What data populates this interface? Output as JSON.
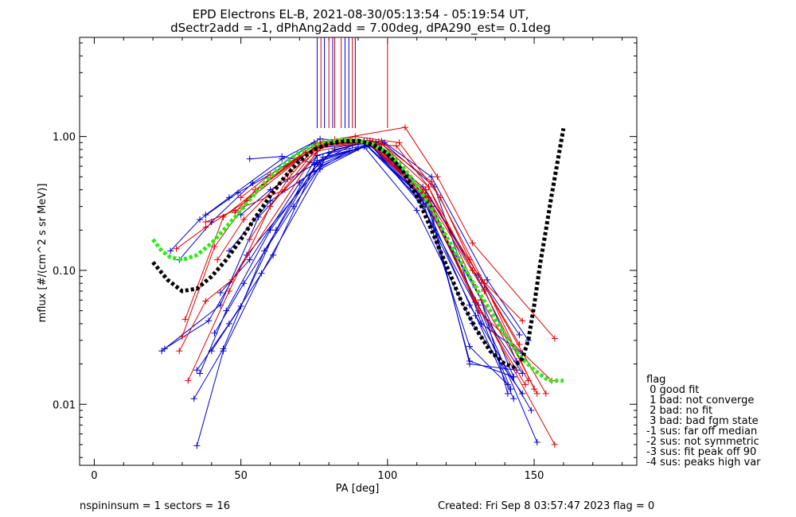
{
  "title": [
    "EPD Electrons EL-B, 2021-08-30/05:13:54 - 05:19:54 UT,",
    "dSectr2add = -1, dPhAng2add = 7.00deg, dPA290_est=   0.1deg"
  ],
  "xlabel": "PA [deg]",
  "ylabel": "mflux [#/(cm^2 s sr MeV)]",
  "footer": {
    "left": "nspininsum =  1  sectors = 16",
    "right": "Created: Fri Sep  8 03:57:47 2023   flag = 0"
  },
  "legend": {
    "title": "flag",
    "items": [
      " 0 good fit",
      " 1 bad: not converge",
      " 2 bad: no fit",
      " 3 bad: bad fgm state",
      "-1 sus: far off median",
      "-2 sus: not symmetric",
      "-3 sus: fit peak off 90",
      "-4 sus: peaks high var"
    ]
  },
  "colors": {
    "red": "#dd0000",
    "blue": "#0000cc",
    "black": "#000000",
    "green": "#22ee11"
  },
  "chart_data": {
    "type": "line",
    "xlim": [
      -5,
      185
    ],
    "ylim": [
      0.0035,
      5.5
    ],
    "yscale": "log",
    "xticks": [
      0,
      50,
      100,
      150
    ],
    "yticks": [
      {
        "v": 0.01,
        "label": "0.01"
      },
      {
        "v": 0.1,
        "label": "0.10"
      },
      {
        "v": 1.0,
        "label": "1.00"
      }
    ],
    "vlines": [
      {
        "x": 76.0,
        "c": "blue"
      },
      {
        "x": 77.3,
        "c": "red"
      },
      {
        "x": 78.5,
        "c": "blue"
      },
      {
        "x": 80.0,
        "c": "red"
      },
      {
        "x": 81.3,
        "c": "blue"
      },
      {
        "x": 82.0,
        "c": "red"
      },
      {
        "x": 84.2,
        "c": "red"
      },
      {
        "x": 85.5,
        "c": "blue"
      },
      {
        "x": 86.8,
        "c": "blue"
      },
      {
        "x": 88.0,
        "c": "red"
      },
      {
        "x": 89.0,
        "c": "blue"
      },
      {
        "x": 100.0,
        "c": "red"
      }
    ],
    "series": [
      {
        "c": "blue",
        "x": [
          23,
          43,
          56,
          76,
          93,
          111,
          131,
          142
        ],
        "y": [
          0.025,
          0.055,
          0.25,
          0.72,
          0.93,
          0.33,
          0.05,
          0.013
        ]
      },
      {
        "c": "blue",
        "x": [
          24,
          39,
          52,
          77,
          94,
          112,
          130,
          143
        ],
        "y": [
          0.026,
          0.042,
          0.13,
          0.6,
          0.88,
          0.3,
          0.046,
          0.011
        ]
      },
      {
        "c": "blue",
        "x": [
          26,
          36,
          49,
          76,
          95,
          113,
          133,
          144
        ],
        "y": [
          0.14,
          0.24,
          0.38,
          0.82,
          0.9,
          0.4,
          0.072,
          0.021
        ]
      },
      {
        "c": "blue",
        "x": [
          29,
          40,
          54,
          75,
          92,
          112,
          131,
          145
        ],
        "y": [
          0.12,
          0.23,
          0.45,
          0.9,
          0.92,
          0.42,
          0.092,
          0.033
        ]
      },
      {
        "c": "blue",
        "x": [
          34,
          44,
          58,
          76,
          93,
          115,
          130,
          146
        ],
        "y": [
          0.011,
          0.026,
          0.14,
          0.64,
          0.86,
          0.3,
          0.058,
          0.017
        ]
      },
      {
        "c": "blue",
        "x": [
          35,
          44,
          57,
          77,
          92,
          110,
          129,
          146
        ],
        "y": [
          0.0049,
          0.025,
          0.095,
          0.57,
          0.84,
          0.28,
          0.04,
          0.012
        ]
      },
      {
        "c": "blue",
        "x": [
          35,
          46,
          61,
          76,
          94,
          114,
          131,
          151
        ],
        "y": [
          0.018,
          0.04,
          0.13,
          0.66,
          0.87,
          0.31,
          0.055,
          0.0052
        ]
      },
      {
        "c": "blue",
        "x": [
          36,
          45,
          60,
          78,
          93,
          113,
          128,
          149
        ],
        "y": [
          0.017,
          0.05,
          0.2,
          0.7,
          0.85,
          0.31,
          0.055,
          0.009
        ]
      },
      {
        "c": "blue",
        "x": [
          38,
          46,
          64,
          77,
          92,
          111,
          130,
          143
        ],
        "y": [
          0.26,
          0.35,
          0.68,
          0.96,
          0.9,
          0.36,
          0.075,
          0.016
        ]
      },
      {
        "c": "blue",
        "x": [
          40,
          50,
          62,
          76,
          94,
          112,
          132,
          141
        ],
        "y": [
          0.025,
          0.054,
          0.2,
          0.72,
          0.93,
          0.35,
          0.06,
          0.012
        ]
      },
      {
        "c": "blue",
        "x": [
          41,
          51,
          68,
          80,
          96,
          112,
          128,
          141
        ],
        "y": [
          0.034,
          0.08,
          0.3,
          0.75,
          0.9,
          0.33,
          0.027,
          0.014
        ]
      },
      {
        "c": "blue",
        "x": [
          43,
          53,
          70,
          82,
          95,
          113,
          128,
          143
        ],
        "y": [
          0.068,
          0.12,
          0.45,
          0.8,
          0.92,
          0.36,
          0.021,
          0.016
        ]
      },
      {
        "c": "blue",
        "x": [
          46,
          60,
          75,
          87,
          97,
          114,
          128,
          144
        ],
        "y": [
          0.14,
          0.33,
          0.55,
          0.78,
          0.88,
          0.33,
          0.02,
          0.018
        ]
      },
      {
        "c": "blue",
        "x": [
          50,
          60,
          75,
          88,
          98,
          116,
          132,
          146
        ],
        "y": [
          0.26,
          0.4,
          0.62,
          0.86,
          0.92,
          0.42,
          0.04,
          0.024
        ]
      },
      {
        "c": "blue",
        "x": [
          53,
          64,
          77,
          90,
          99,
          115,
          134,
          148
        ],
        "y": [
          0.68,
          0.71,
          0.62,
          0.82,
          0.9,
          0.5,
          0.085,
          0.03
        ]
      },
      {
        "c": "red",
        "x": [
          28,
          38,
          52,
          76,
          94,
          113,
          132,
          145
        ],
        "y": [
          0.145,
          0.21,
          0.33,
          0.86,
          0.93,
          0.4,
          0.085,
          0.028
        ]
      },
      {
        "c": "red",
        "x": [
          29,
          38,
          47,
          76,
          93,
          114,
          130,
          147
        ],
        "y": [
          0.025,
          0.059,
          0.085,
          0.78,
          0.91,
          0.35,
          0.058,
          0.014
        ]
      },
      {
        "c": "red",
        "x": [
          30,
          41,
          55,
          76,
          93,
          112,
          133,
          151
        ],
        "y": [
          0.032,
          0.15,
          0.4,
          0.9,
          0.92,
          0.4,
          0.07,
          0.012
        ]
      },
      {
        "c": "red",
        "x": [
          31,
          44,
          58,
          78,
          94,
          112,
          130,
          157
        ],
        "y": [
          0.043,
          0.25,
          0.44,
          0.92,
          0.88,
          0.36,
          0.06,
          0.005
        ]
      },
      {
        "c": "red",
        "x": [
          32,
          46,
          60,
          77,
          95,
          113,
          131,
          156
        ],
        "y": [
          0.015,
          0.07,
          0.3,
          0.88,
          0.9,
          0.35,
          0.05,
          0.015
        ]
      },
      {
        "c": "red",
        "x": [
          38,
          48,
          65,
          78,
          97,
          114,
          132,
          148
        ],
        "y": [
          0.23,
          0.28,
          0.4,
          0.85,
          0.92,
          0.42,
          0.06,
          0.015
        ]
      },
      {
        "c": "red",
        "x": [
          42,
          51,
          67,
          80,
          98,
          115,
          133,
          150
        ],
        "y": [
          0.12,
          0.24,
          0.55,
          0.9,
          0.88,
          0.46,
          0.08,
          0.013
        ]
      },
      {
        "c": "red",
        "x": [
          48,
          55,
          70,
          82,
          106,
          117,
          129,
          157
        ],
        "y": [
          0.27,
          0.4,
          0.7,
          0.95,
          1.17,
          0.5,
          0.16,
          0.031
        ]
      },
      {
        "c": "red",
        "x": [
          50,
          60,
          72,
          85,
          103,
          114,
          129,
          146
        ],
        "y": [
          0.35,
          0.52,
          0.76,
          0.92,
          0.85,
          0.42,
          0.1,
          0.042
        ]
      },
      {
        "c": "red",
        "x": [
          53,
          66,
          75,
          89,
          104,
          118,
          128,
          154
        ],
        "y": [
          0.17,
          0.48,
          0.82,
          1.0,
          0.9,
          0.35,
          0.12,
          0.012
        ]
      }
    ],
    "median_fit": {
      "c": "black",
      "x": [
        20,
        25,
        30,
        35,
        40,
        45,
        50,
        55,
        60,
        65,
        70,
        75,
        80,
        85,
        90,
        95,
        100,
        105,
        110,
        115,
        120,
        125,
        130,
        135,
        140,
        143,
        146,
        148,
        150,
        152,
        154,
        156,
        158,
        160
      ],
      "y": [
        0.115,
        0.085,
        0.07,
        0.073,
        0.09,
        0.12,
        0.17,
        0.25,
        0.36,
        0.5,
        0.66,
        0.8,
        0.88,
        0.92,
        0.93,
        0.87,
        0.75,
        0.56,
        0.36,
        0.2,
        0.11,
        0.06,
        0.037,
        0.025,
        0.02,
        0.019,
        0.022,
        0.03,
        0.055,
        0.11,
        0.2,
        0.37,
        0.65,
        1.15
      ]
    },
    "sym_fit": {
      "c": "green",
      "x": [
        20,
        23,
        26,
        30,
        35,
        40,
        45,
        50,
        55,
        60,
        65,
        70,
        75,
        80,
        85,
        90,
        95,
        100,
        105,
        110,
        115,
        120,
        125,
        130,
        135,
        140,
        145,
        150,
        155,
        160
      ],
      "y": [
        0.17,
        0.14,
        0.125,
        0.12,
        0.13,
        0.16,
        0.21,
        0.28,
        0.38,
        0.5,
        0.63,
        0.76,
        0.86,
        0.92,
        0.94,
        0.93,
        0.88,
        0.76,
        0.6,
        0.43,
        0.29,
        0.18,
        0.115,
        0.075,
        0.05,
        0.033,
        0.023,
        0.018,
        0.015,
        0.015
      ]
    }
  }
}
